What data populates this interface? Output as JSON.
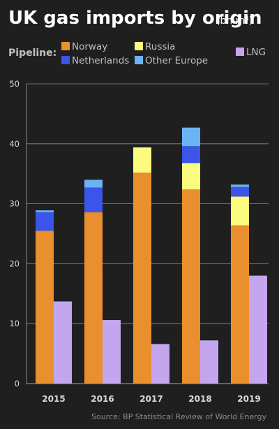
{
  "title": "UK gas imports by origin",
  "units": "(bn m³)",
  "legend_group_label": "Pipeline:",
  "source": "Source: BP Statistical Review of World Energy",
  "colors": {
    "Norway": "#e98f2e",
    "Netherlands": "#3a55e8",
    "Russia": "#fafb7f",
    "Other Europe": "#6bb4f4",
    "LNG": "#c4a6ee",
    "background": "#1f1f1f",
    "grid": "#8a8a8a"
  },
  "chart_data": {
    "type": "bar",
    "categories": [
      "2015",
      "2016",
      "2017",
      "2018",
      "2019"
    ],
    "stacks": {
      "pipeline": [
        "Norway",
        "Russia",
        "Netherlands",
        "Other Europe"
      ],
      "lng": [
        "LNG"
      ]
    },
    "series": [
      {
        "name": "Norway",
        "values": [
          25.5,
          28.6,
          35.2,
          32.4,
          26.4
        ]
      },
      {
        "name": "Russia",
        "values": [
          0,
          0,
          4.2,
          4.4,
          4.8
        ]
      },
      {
        "name": "Netherlands",
        "values": [
          3.1,
          4.1,
          0,
          2.8,
          1.6
        ]
      },
      {
        "name": "Other Europe",
        "values": [
          0.3,
          1.3,
          0,
          3.1,
          0.4
        ]
      },
      {
        "name": "LNG",
        "values": [
          13.7,
          10.6,
          6.6,
          7.2,
          18.0
        ]
      }
    ],
    "ylim": [
      0,
      50
    ],
    "yticks": [
      0,
      10,
      20,
      30,
      40,
      50
    ],
    "grid": true,
    "legend": "top",
    "xlabel": "",
    "ylabel": ""
  }
}
